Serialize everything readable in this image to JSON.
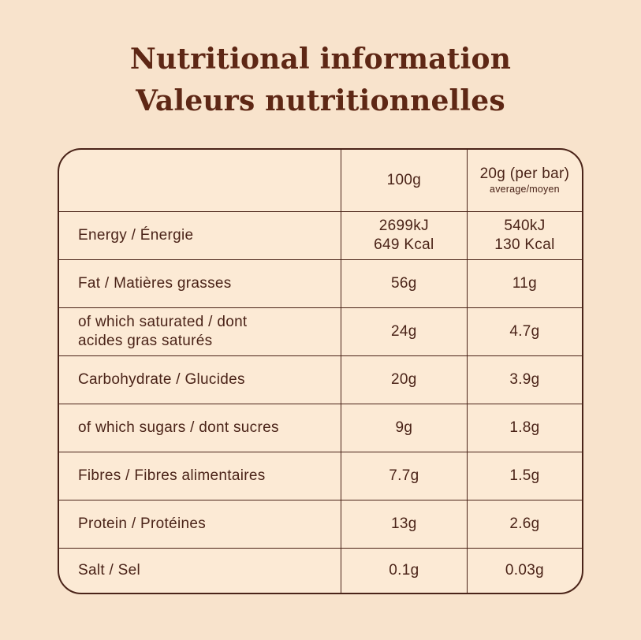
{
  "theme": {
    "page_bg": "#f8e3cc",
    "table_bg": "#fcead5",
    "ink": "#4a2318",
    "title_color": "#5e2715"
  },
  "title": {
    "line1": "Nutritional information",
    "line2": "Valeurs nutritionnelles"
  },
  "table": {
    "header": {
      "col1": "",
      "col2": "100g",
      "col3_main": "20g (per bar)",
      "col3_sub": "average/moyen"
    },
    "rows": [
      {
        "label": "Energy / Énergie",
        "per_100g": "2699kJ\n649 Kcal",
        "per_bar": "540kJ\n130 Kcal"
      },
      {
        "label": "Fat / Matières grasses",
        "per_100g": "56g",
        "per_bar": "11g"
      },
      {
        "label": "of which saturated / dont\nacides gras saturés",
        "per_100g": "24g",
        "per_bar": "4.7g"
      },
      {
        "label": "Carbohydrate / Glucides",
        "per_100g": "20g",
        "per_bar": "3.9g"
      },
      {
        "label": "of which sugars / dont sucres",
        "per_100g": "9g",
        "per_bar": "1.8g"
      },
      {
        "label": "Fibres / Fibres alimentaires",
        "per_100g": "7.7g",
        "per_bar": "1.5g"
      },
      {
        "label": "Protein / Protéines",
        "per_100g": "13g",
        "per_bar": "2.6g"
      },
      {
        "label": "Salt / Sel",
        "per_100g": "0.1g",
        "per_bar": "0.03g"
      }
    ]
  }
}
